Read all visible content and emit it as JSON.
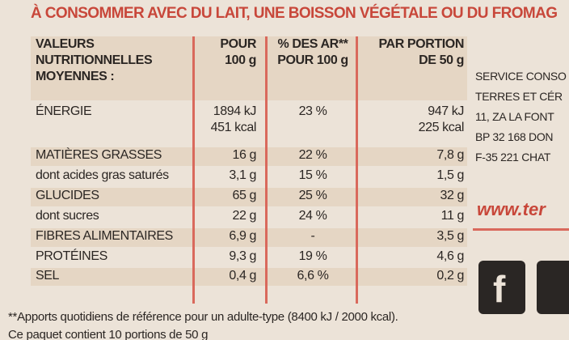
{
  "banner": "À CONSOMMER AVEC DU LAIT, UNE BOISSON VÉGÉTALE OU DU FROMAG",
  "table": {
    "header": [
      [
        "VALEURS",
        "NUTRITIONNELLES",
        "MOYENNES :"
      ],
      [
        "POUR",
        "100 g"
      ],
      [
        "% DES AR**",
        "POUR 100 g"
      ],
      [
        "PAR PORTION",
        "DE 50 g"
      ]
    ],
    "rows": [
      [
        [
          "ÉNERGIE"
        ],
        [
          "1894 kJ",
          "451 kcal"
        ],
        [
          "23 %"
        ],
        [
          "947 kJ",
          "225 kcal"
        ]
      ],
      [
        [
          "MATIÈRES GRASSES"
        ],
        [
          "16 g"
        ],
        [
          "22 %"
        ],
        [
          "7,8 g"
        ]
      ],
      [
        [
          "dont acides gras saturés"
        ],
        [
          "3,1 g"
        ],
        [
          "15 %"
        ],
        [
          "1,5 g"
        ]
      ],
      [
        [
          "GLUCIDES"
        ],
        [
          "65 g"
        ],
        [
          "25 %"
        ],
        [
          "32 g"
        ]
      ],
      [
        [
          "dont sucres"
        ],
        [
          "22 g"
        ],
        [
          "24 %"
        ],
        [
          "11 g"
        ]
      ],
      [
        [
          "FIBRES ALIMENTAIRES"
        ],
        [
          "6,9 g"
        ],
        [
          "-"
        ],
        [
          "3,5 g"
        ]
      ],
      [
        [
          "PROTÉINES"
        ],
        [
          "9,3 g"
        ],
        [
          "19 %"
        ],
        [
          "4,6 g"
        ]
      ],
      [
        [
          "SEL"
        ],
        [
          "0,4 g"
        ],
        [
          "6,6 %"
        ],
        [
          "0,2 g"
        ]
      ]
    ]
  },
  "footnote": [
    "**Apports quotidiens de référence pour un adulte-type (8400 kJ / 2000 kcal).",
    "Ce paquet contient 10 portions de 50 g"
  ],
  "side": [
    "SERVICE CONSO",
    "TERRES ET CÉR",
    "11, ZA LA FONT",
    "BP 32 168 DON",
    "F-35 221 CHAT"
  ],
  "website": "www.ter"
}
